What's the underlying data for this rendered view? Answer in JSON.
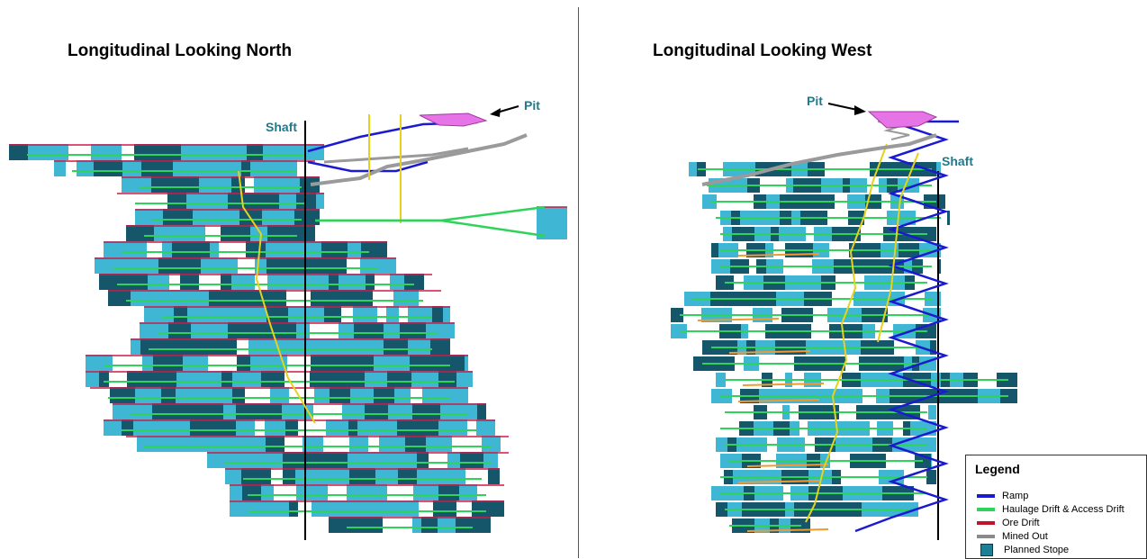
{
  "panels": {
    "left": {
      "title": "Longitudinal Looking North",
      "labels": {
        "shaft": "Shaft",
        "pit": "Pit"
      }
    },
    "right": {
      "title": "Longitudinal Looking West",
      "labels": {
        "shaft": "Shaft",
        "pit": "Pit"
      }
    }
  },
  "legend": {
    "title": "Legend",
    "items": [
      {
        "label": "Ramp",
        "color": "#1a1ad0",
        "kind": "line"
      },
      {
        "label": "Haulage Drift  & Access Drift",
        "color": "#2fd35a",
        "kind": "line"
      },
      {
        "label": "Ore Drift",
        "color": "#c0142a",
        "kind": "line"
      },
      {
        "label": "Mined Out",
        "color": "#8a8a8a",
        "kind": "line"
      },
      {
        "label": "Planned Stope",
        "color": "#1b7f96",
        "kind": "box"
      }
    ]
  },
  "colors": {
    "stope_light": "#3fb6d3",
    "stope_dark": "#16566a",
    "haulage": "#2fd35a",
    "ramp": "#1a1ad0",
    "ore": "#d01848",
    "mined_out": "#9a9a9a",
    "yellow": "#e6d21a",
    "orange": "#f29a2e",
    "pit": "#e774e6"
  }
}
